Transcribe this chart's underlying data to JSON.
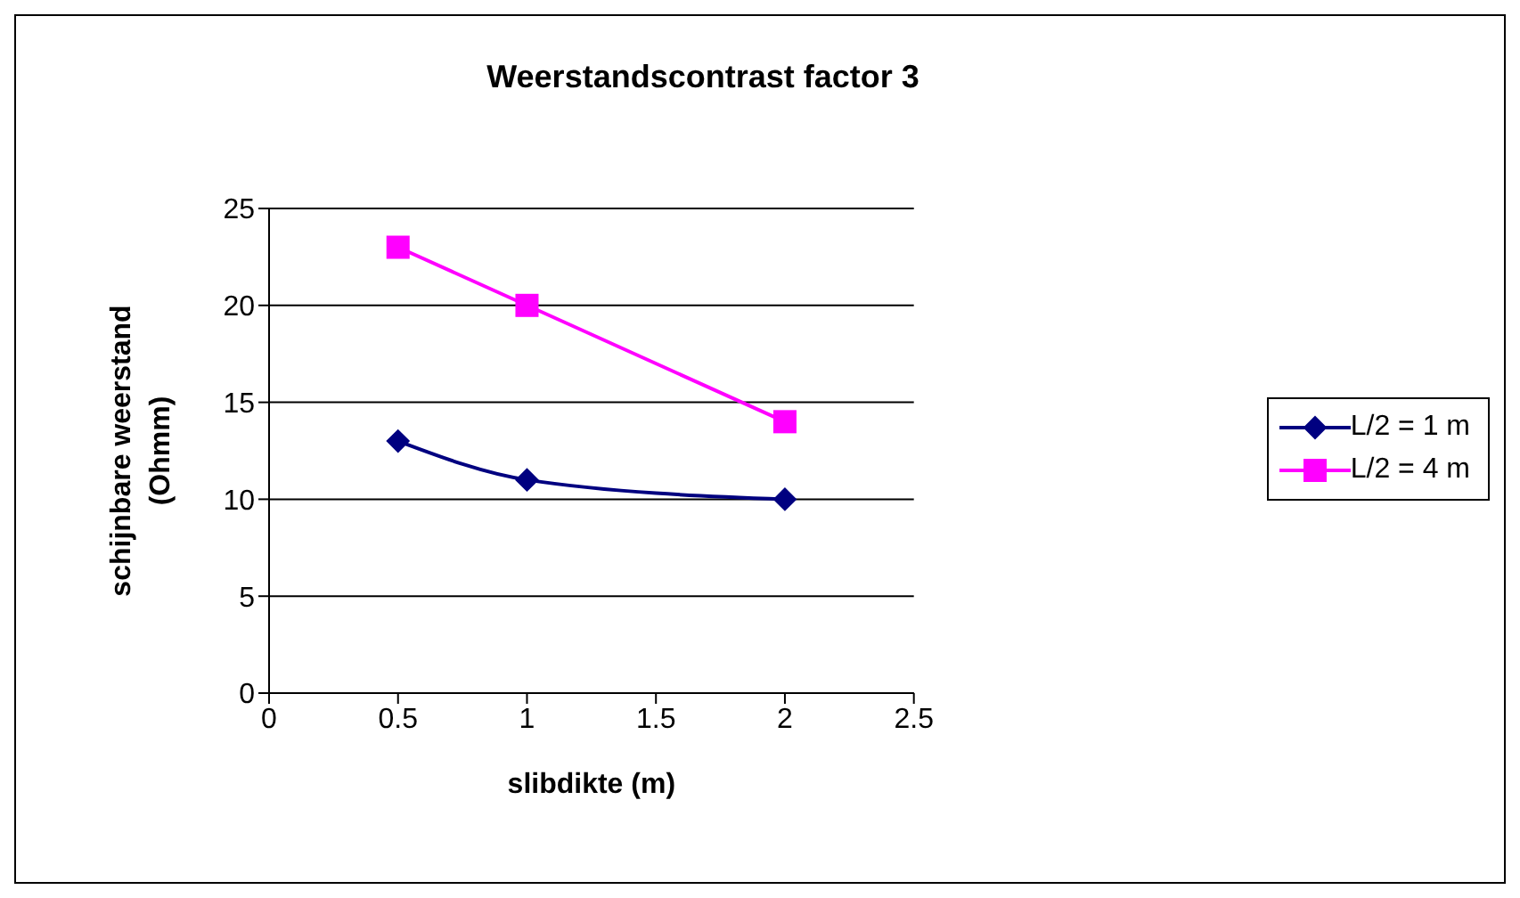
{
  "chart_data": {
    "type": "line",
    "title": "Weerstandscontrast factor 3",
    "xlabel": "slibdikte (m)",
    "ylabel": "schijnbare weerstand (Ohmm)",
    "x": [
      0.5,
      1,
      2
    ],
    "series": [
      {
        "name": "L/2 = 1 m",
        "color": "#000080",
        "values": [
          13,
          11,
          10
        ],
        "marker": "diamond"
      },
      {
        "name": "L/2 = 4 m",
        "color": "#ff00ff",
        "values": [
          23,
          20,
          14
        ],
        "marker": "square"
      }
    ],
    "xlim": [
      0,
      2.5
    ],
    "xticks": [
      0,
      0.5,
      1,
      1.5,
      2,
      2.5
    ],
    "ylim": [
      0,
      25
    ],
    "yticks": [
      0,
      5,
      10,
      15,
      20,
      25
    ],
    "grid": "y",
    "legend": "right",
    "line_style": "solid"
  }
}
